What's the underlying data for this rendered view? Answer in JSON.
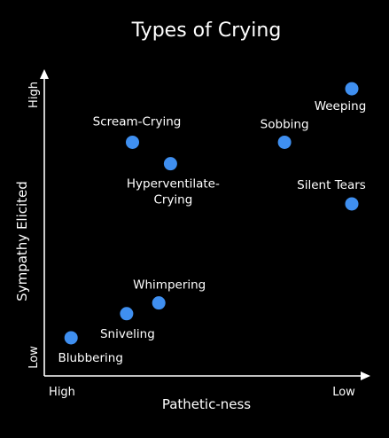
{
  "chart_data": {
    "type": "scatter",
    "title": "Types of Crying",
    "xlabel": "Pathetic-ness",
    "ylabel": "Sympathy Elicited",
    "x_ticks": {
      "left": "High",
      "right": "Low"
    },
    "y_ticks": {
      "bottom": "Low",
      "top": "High"
    },
    "xlim": [
      0,
      10
    ],
    "ylim": [
      0,
      10
    ],
    "grid": false,
    "point_color": "#3f8ff0",
    "points": [
      {
        "label": "Blubbering",
        "x": 0.4,
        "y": 0.3
      },
      {
        "label": "Sniveling",
        "x": 2.3,
        "y": 1.2
      },
      {
        "label": "Whimpering",
        "x": 3.4,
        "y": 1.6
      },
      {
        "label": "Scream-Crying",
        "x": 2.5,
        "y": 7.6
      },
      {
        "label": "Hyperventilate-\nCrying",
        "x": 3.8,
        "y": 6.8
      },
      {
        "label": "Sobbing",
        "x": 7.7,
        "y": 7.6
      },
      {
        "label": "Silent Tears",
        "x": 10.0,
        "y": 5.3
      },
      {
        "label": "Weeping",
        "x": 10.0,
        "y": 9.6
      }
    ]
  }
}
